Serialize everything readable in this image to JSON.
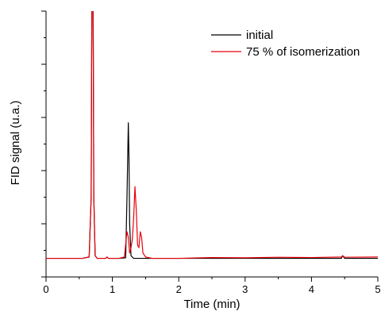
{
  "chart_data": {
    "type": "line",
    "xlabel": "Time (min)",
    "ylabel": "FID signal (u.a.)",
    "xlim": [
      0,
      5
    ],
    "ylim": [
      0,
      100
    ],
    "xticks": [
      "0",
      "1",
      "2",
      "3",
      "4",
      "5"
    ],
    "y_ticks_labeled": false,
    "grid": false,
    "legend_position": "top-right",
    "series": [
      {
        "name": "initial",
        "color": "#000000",
        "x": [
          0,
          0.55,
          0.65,
          0.68,
          0.69,
          0.7,
          0.705,
          0.71,
          0.72,
          0.74,
          0.77,
          0.9,
          0.92,
          0.94,
          1.1,
          1.2,
          1.22,
          1.24,
          1.25,
          1.26,
          1.28,
          1.3,
          1.32,
          1.45,
          2.0,
          3.0,
          4.0,
          4.45,
          4.47,
          4.5,
          5.0
        ],
        "y": [
          7,
          7,
          7.5,
          30,
          100,
          110,
          110,
          100,
          30,
          8,
          7,
          7,
          7.5,
          7,
          7,
          7.2,
          30,
          58,
          45,
          20,
          8,
          7.5,
          7,
          7,
          7,
          7,
          7,
          7,
          8,
          7,
          7
        ]
      },
      {
        "name": "75 % of isomerization",
        "color": "#e8000b",
        "x": [
          0,
          0.55,
          0.65,
          0.68,
          0.69,
          0.7,
          0.705,
          0.71,
          0.72,
          0.74,
          0.77,
          0.9,
          0.92,
          0.94,
          1.1,
          1.18,
          1.22,
          1.24,
          1.26,
          1.28,
          1.3,
          1.32,
          1.34,
          1.36,
          1.38,
          1.4,
          1.42,
          1.44,
          1.46,
          1.5,
          1.6,
          2.0,
          2.5,
          3.0,
          3.5,
          4.0,
          4.45,
          4.47,
          4.5,
          5.0
        ],
        "y": [
          7,
          7,
          7.5,
          30,
          100,
          110,
          110,
          100,
          30,
          8,
          7,
          7,
          7.5,
          7,
          7,
          7.5,
          17,
          15,
          9,
          11,
          14,
          22,
          34,
          25,
          12,
          11,
          17,
          15,
          9,
          7.5,
          7,
          7,
          7.3,
          7.2,
          7.4,
          7.3,
          7.5,
          8,
          7.4,
          7.5
        ]
      }
    ]
  }
}
